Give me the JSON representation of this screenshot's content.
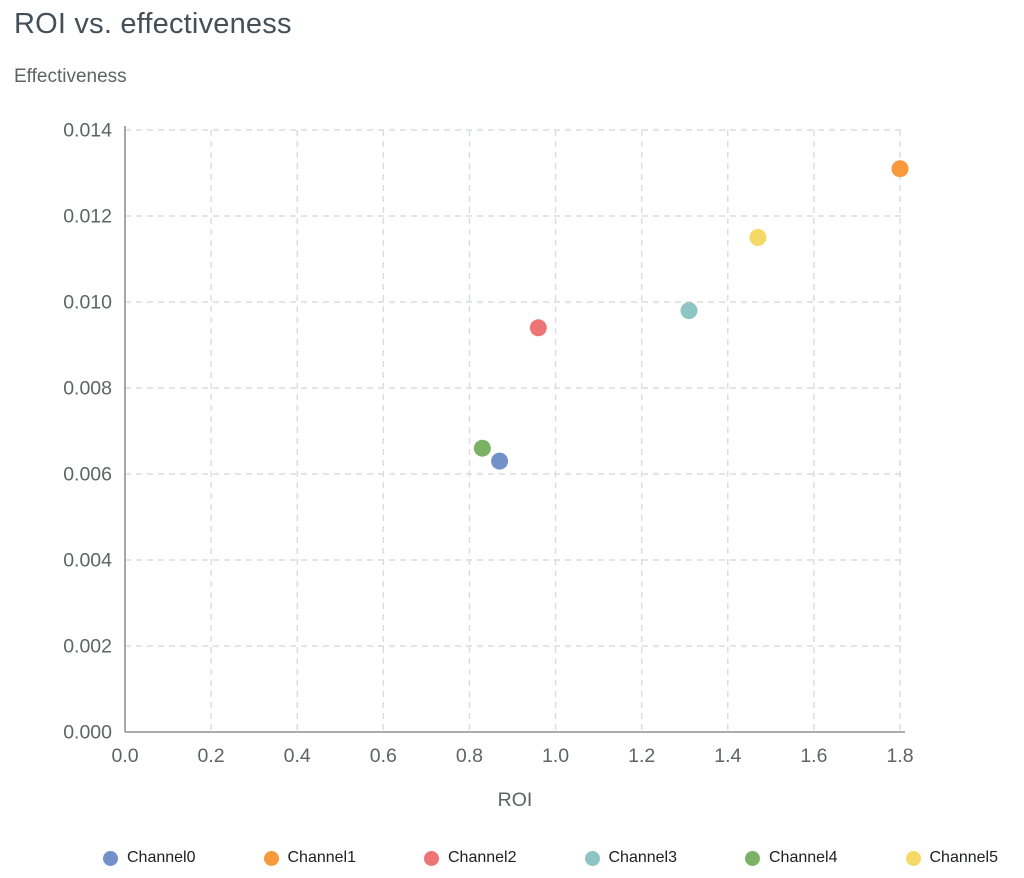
{
  "chart_data": {
    "type": "scatter",
    "title": "ROI vs. effectiveness",
    "xlabel": "ROI",
    "ylabel": "Effectiveness",
    "xlim": [
      0,
      1.8
    ],
    "ylim": [
      0,
      0.014
    ],
    "x_ticks": [
      0,
      0.2,
      0.4,
      0.6,
      0.8,
      1.0,
      1.2,
      1.4,
      1.6,
      1.8
    ],
    "x_tick_labels": [
      "0.0",
      "0.2",
      "0.4",
      "0.6",
      "0.8",
      "1.0",
      "1.2",
      "1.4",
      "1.6",
      "1.8"
    ],
    "y_ticks": [
      0,
      0.002,
      0.004,
      0.006,
      0.008,
      0.01,
      0.012,
      0.014
    ],
    "y_tick_labels": [
      "0.000",
      "0.002",
      "0.004",
      "0.006",
      "0.008",
      "0.010",
      "0.012",
      "0.014"
    ],
    "grid": "dashed",
    "legend_position": "bottom",
    "colors": {
      "axis": "#8b9298",
      "gridline": "#d9dce1",
      "tick_label": "#5f6368",
      "title": "#434f59"
    },
    "series": [
      {
        "name": "Channel0",
        "color": "#7191c8",
        "points": [
          {
            "x": 0.87,
            "y": 0.0063
          }
        ]
      },
      {
        "name": "Channel1",
        "color": "#f8993c",
        "points": [
          {
            "x": 1.8,
            "y": 0.0131
          }
        ]
      },
      {
        "name": "Channel2",
        "color": "#ee7576",
        "points": [
          {
            "x": 0.96,
            "y": 0.0094
          }
        ]
      },
      {
        "name": "Channel3",
        "color": "#8ec4c2",
        "points": [
          {
            "x": 1.31,
            "y": 0.0098
          }
        ]
      },
      {
        "name": "Channel4",
        "color": "#7cb266",
        "points": [
          {
            "x": 0.83,
            "y": 0.0066
          }
        ]
      },
      {
        "name": "Channel5",
        "color": "#f4d966",
        "points": [
          {
            "x": 1.47,
            "y": 0.0115
          }
        ]
      }
    ]
  }
}
